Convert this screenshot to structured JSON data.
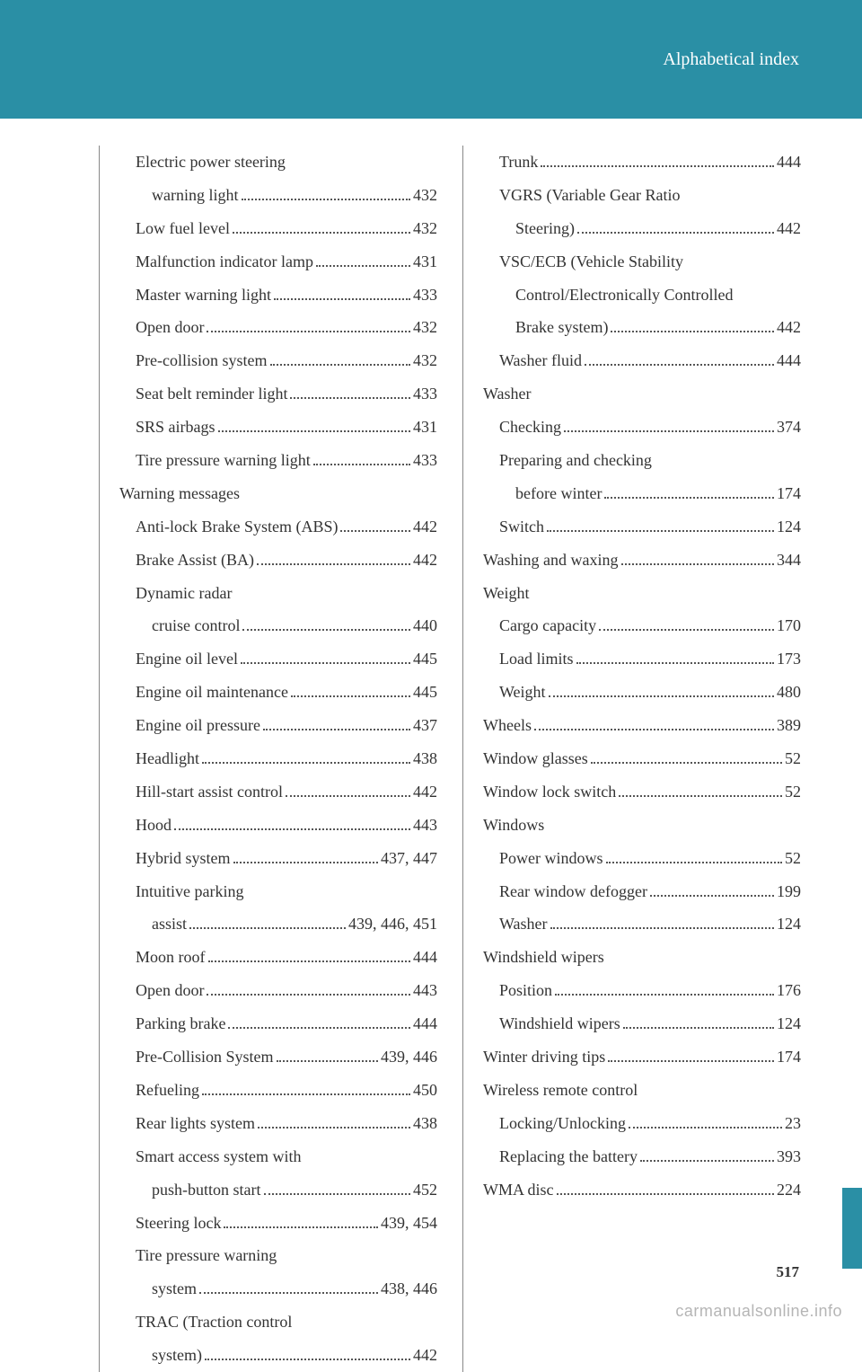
{
  "header": {
    "title": "Alphabetical index"
  },
  "page_number": "517",
  "watermark": "carmanualsonline.info",
  "left_col": [
    {
      "label": "Electric power steering",
      "page": "",
      "indent": "sub",
      "nodots": true
    },
    {
      "label": "warning light",
      "page": "432",
      "indent": "sub2"
    },
    {
      "label": "Low fuel level",
      "page": "432",
      "indent": "sub"
    },
    {
      "label": "Malfunction indicator lamp",
      "page": "431",
      "indent": "sub"
    },
    {
      "label": "Master warning light",
      "page": "433",
      "indent": "sub"
    },
    {
      "label": "Open door",
      "page": "432",
      "indent": "sub"
    },
    {
      "label": "Pre-collision system",
      "page": "432",
      "indent": "sub"
    },
    {
      "label": "Seat belt reminder light",
      "page": "433",
      "indent": "sub"
    },
    {
      "label": "SRS airbags",
      "page": "431",
      "indent": "sub"
    },
    {
      "label": "Tire pressure warning light",
      "page": "433",
      "indent": "sub"
    },
    {
      "label": "Warning messages",
      "page": "",
      "indent": "main",
      "nodots": true
    },
    {
      "label": "Anti-lock Brake System (ABS)",
      "page": "442",
      "indent": "sub"
    },
    {
      "label": "Brake Assist (BA)",
      "page": "442",
      "indent": "sub"
    },
    {
      "label": "Dynamic radar",
      "page": "",
      "indent": "sub",
      "nodots": true
    },
    {
      "label": "cruise control",
      "page": "440",
      "indent": "sub2"
    },
    {
      "label": "Engine oil level",
      "page": "445",
      "indent": "sub"
    },
    {
      "label": "Engine oil maintenance",
      "page": "445",
      "indent": "sub"
    },
    {
      "label": "Engine oil pressure",
      "page": "437",
      "indent": "sub"
    },
    {
      "label": "Headlight",
      "page": "438",
      "indent": "sub"
    },
    {
      "label": "Hill-start assist control",
      "page": "442",
      "indent": "sub"
    },
    {
      "label": "Hood",
      "page": "443",
      "indent": "sub"
    },
    {
      "label": "Hybrid system",
      "page": "437, 447",
      "indent": "sub"
    },
    {
      "label": "Intuitive parking",
      "page": "",
      "indent": "sub",
      "nodots": true
    },
    {
      "label": "assist",
      "page": "439, 446, 451",
      "indent": "sub2"
    },
    {
      "label": "Moon roof",
      "page": "444",
      "indent": "sub"
    },
    {
      "label": "Open door",
      "page": "443",
      "indent": "sub"
    },
    {
      "label": "Parking brake",
      "page": "444",
      "indent": "sub"
    },
    {
      "label": "Pre-Collision System",
      "page": "439, 446",
      "indent": "sub"
    },
    {
      "label": "Refueling",
      "page": "450",
      "indent": "sub"
    },
    {
      "label": "Rear lights system",
      "page": "438",
      "indent": "sub"
    },
    {
      "label": "Smart access system with",
      "page": "",
      "indent": "sub",
      "nodots": true
    },
    {
      "label": "push-button start",
      "page": "452",
      "indent": "sub2"
    },
    {
      "label": "Steering lock",
      "page": "439, 454",
      "indent": "sub"
    },
    {
      "label": "Tire pressure warning",
      "page": "",
      "indent": "sub",
      "nodots": true
    },
    {
      "label": "system",
      "page": "438, 446",
      "indent": "sub2"
    },
    {
      "label": "TRAC (Traction control",
      "page": "",
      "indent": "sub",
      "nodots": true
    },
    {
      "label": "system)",
      "page": "442",
      "indent": "sub2"
    }
  ],
  "right_col": [
    {
      "label": "Trunk",
      "page": "444",
      "indent": "sub"
    },
    {
      "label": "VGRS (Variable Gear Ratio",
      "page": "",
      "indent": "sub",
      "nodots": true
    },
    {
      "label": "Steering)",
      "page": "442",
      "indent": "sub2"
    },
    {
      "label": "VSC/ECB (Vehicle Stability",
      "page": "",
      "indent": "sub",
      "nodots": true
    },
    {
      "label": "Control/Electronically Controlled",
      "page": "",
      "indent": "sub2",
      "nodots": true
    },
    {
      "label": "Brake system)",
      "page": "442",
      "indent": "sub2"
    },
    {
      "label": "Washer fluid",
      "page": "444",
      "indent": "sub"
    },
    {
      "label": "Washer",
      "page": "",
      "indent": "main",
      "nodots": true
    },
    {
      "label": "Checking",
      "page": "374",
      "indent": "sub"
    },
    {
      "label": "Preparing and checking",
      "page": "",
      "indent": "sub",
      "nodots": true
    },
    {
      "label": "before winter",
      "page": "174",
      "indent": "sub2"
    },
    {
      "label": "Switch",
      "page": "124",
      "indent": "sub"
    },
    {
      "label": "Washing and waxing",
      "page": "344",
      "indent": "main"
    },
    {
      "label": "Weight",
      "page": "",
      "indent": "main",
      "nodots": true
    },
    {
      "label": "Cargo capacity",
      "page": "170",
      "indent": "sub"
    },
    {
      "label": "Load limits",
      "page": "173",
      "indent": "sub"
    },
    {
      "label": "Weight",
      "page": "480",
      "indent": "sub"
    },
    {
      "label": "Wheels",
      "page": "389",
      "indent": "main"
    },
    {
      "label": "Window glasses",
      "page": "52",
      "indent": "main"
    },
    {
      "label": "Window lock switch",
      "page": "52",
      "indent": "main"
    },
    {
      "label": "Windows",
      "page": "",
      "indent": "main",
      "nodots": true
    },
    {
      "label": "Power windows",
      "page": "52",
      "indent": "sub"
    },
    {
      "label": "Rear window defogger",
      "page": "199",
      "indent": "sub"
    },
    {
      "label": "Washer",
      "page": "124",
      "indent": "sub"
    },
    {
      "label": "Windshield wipers",
      "page": "",
      "indent": "main",
      "nodots": true
    },
    {
      "label": "Position",
      "page": "176",
      "indent": "sub"
    },
    {
      "label": "Windshield wipers",
      "page": "124",
      "indent": "sub"
    },
    {
      "label": "Winter driving tips",
      "page": "174",
      "indent": "main"
    },
    {
      "label": "Wireless remote control",
      "page": "",
      "indent": "main",
      "nodots": true
    },
    {
      "label": "Locking/Unlocking",
      "page": "23",
      "indent": "sub"
    },
    {
      "label": "Replacing the battery",
      "page": "393",
      "indent": "sub"
    },
    {
      "label": "WMA disc",
      "page": "224",
      "indent": "main"
    }
  ]
}
